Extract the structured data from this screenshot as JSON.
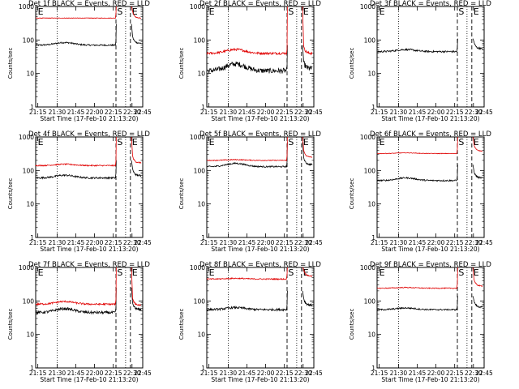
{
  "chart_data": [
    {
      "type": "line",
      "title": "Det 1f BLACK = Events, RED = LLD",
      "xlabel": "Start Time (17-Feb-10 21:13:20)",
      "ylabel": "Counts/sec",
      "yscale": "log",
      "ylim": [
        1,
        1000
      ],
      "x_ticks": [
        "21:15",
        "21:30",
        "21:45",
        "22:00",
        "22:15",
        "22:30",
        "22:45"
      ],
      "y_ticks": [
        "1",
        "10",
        "100",
        "1000"
      ],
      "markers": [
        "E",
        "S",
        "E"
      ],
      "series": [
        {
          "color": "#000000",
          "level_before": 70,
          "hump": 1.2,
          "spike": 300,
          "level_after": 80,
          "noise": 0.05
        },
        {
          "color": "#e00000",
          "level_before": 450,
          "hump": 1.0,
          "spike": 1000,
          "level_after": 450,
          "noise": 0.02
        }
      ]
    },
    {
      "type": "line",
      "title": "Det 2f BLACK = Events, RED = LLD",
      "xlabel": "Start Time (17-Feb-10 21:13:20)",
      "ylabel": "Counts/sec",
      "yscale": "log",
      "ylim": [
        1,
        1000
      ],
      "x_ticks": [
        "21:15",
        "21:30",
        "21:45",
        "22:00",
        "22:15",
        "22:30",
        "22:45"
      ],
      "y_ticks": [
        "1",
        "10",
        "100",
        "1000"
      ],
      "markers": [
        "E",
        "S",
        "E"
      ],
      "series": [
        {
          "color": "#000000",
          "level_before": 12,
          "hump": 1.6,
          "spike": 70,
          "level_after": 14,
          "noise": 0.18
        },
        {
          "color": "#e00000",
          "level_before": 40,
          "hump": 1.3,
          "spike": 1000,
          "level_after": 40,
          "noise": 0.08
        }
      ]
    },
    {
      "type": "line",
      "title": "Det 3f BLACK = Events, RED = LLD",
      "xlabel": "Start Time (17-Feb-10 21:13:20)",
      "ylabel": "Counts/sec",
      "yscale": "log",
      "ylim": [
        1,
        1000
      ],
      "x_ticks": [
        "21:15",
        "21:30",
        "21:45",
        "22:00",
        "22:15",
        "22:30",
        "22:45"
      ],
      "y_ticks": [
        "1",
        "10",
        "100",
        "1000"
      ],
      "markers": [
        "E",
        "S",
        "E"
      ],
      "series": [
        {
          "color": "#000000",
          "level_before": 45,
          "hump": 1.15,
          "spike": 110,
          "level_after": 55,
          "noise": 0.06
        }
      ]
    },
    {
      "type": "line",
      "title": "Det 4f BLACK = Events, RED = LLD",
      "xlabel": "Start Time (17-Feb-10 21:13:20)",
      "ylabel": "Counts/sec",
      "yscale": "log",
      "ylim": [
        1,
        1000
      ],
      "x_ticks": [
        "21:15",
        "21:30",
        "21:45",
        "22:00",
        "22:15",
        "22:30",
        "22:45"
      ],
      "y_ticks": [
        "1",
        "10",
        "100",
        "1000"
      ],
      "markers": [
        "E",
        "S",
        "E"
      ],
      "series": [
        {
          "color": "#000000",
          "level_before": 60,
          "hump": 1.2,
          "spike": 200,
          "level_after": 70,
          "noise": 0.06
        },
        {
          "color": "#e00000",
          "level_before": 140,
          "hump": 1.1,
          "spike": 1000,
          "level_after": 170,
          "noise": 0.04
        }
      ]
    },
    {
      "type": "line",
      "title": "Det 5f BLACK = Events, RED = LLD",
      "xlabel": "Start Time (17-Feb-10 21:13:20)",
      "ylabel": "Counts/sec",
      "yscale": "log",
      "ylim": [
        1,
        1000
      ],
      "x_ticks": [
        "21:15",
        "21:30",
        "21:45",
        "22:00",
        "22:15",
        "22:30",
        "22:45"
      ],
      "y_ticks": [
        "1",
        "10",
        "100",
        "1000"
      ],
      "markers": [
        "E",
        "S",
        "E"
      ],
      "series": [
        {
          "color": "#000000",
          "level_before": 130,
          "hump": 1.25,
          "spike": 700,
          "level_after": 150,
          "noise": 0.05
        },
        {
          "color": "#e00000",
          "level_before": 200,
          "hump": 1.05,
          "spike": 1000,
          "level_after": 250,
          "noise": 0.03
        }
      ]
    },
    {
      "type": "line",
      "title": "Det 6f BLACK = Events, RED = LLD",
      "xlabel": "Start Time (17-Feb-10 21:13:20)",
      "ylabel": "Counts/sec",
      "yscale": "log",
      "ylim": [
        1,
        1000
      ],
      "x_ticks": [
        "21:15",
        "21:30",
        "21:45",
        "22:00",
        "22:15",
        "22:30",
        "22:45"
      ],
      "y_ticks": [
        "1",
        "10",
        "100",
        "1000"
      ],
      "markers": [
        "E",
        "S",
        "E"
      ],
      "series": [
        {
          "color": "#000000",
          "level_before": 50,
          "hump": 1.2,
          "spike": 150,
          "level_after": 60,
          "noise": 0.05
        },
        {
          "color": "#e00000",
          "level_before": 320,
          "hump": 1.05,
          "spike": 1000,
          "level_after": 380,
          "noise": 0.02
        }
      ]
    },
    {
      "type": "line",
      "title": "Det 7f BLACK = Events, RED = LLD",
      "xlabel": "Start Time (17-Feb-10 21:13:20)",
      "ylabel": "Counts/sec",
      "yscale": "log",
      "ylim": [
        1,
        1000
      ],
      "x_ticks": [
        "21:15",
        "21:30",
        "21:45",
        "22:00",
        "22:15",
        "22:30",
        "22:45"
      ],
      "y_ticks": [
        "1",
        "10",
        "100",
        "1000"
      ],
      "markers": [
        "E",
        "S",
        "E"
      ],
      "series": [
        {
          "color": "#000000",
          "level_before": 45,
          "hump": 1.3,
          "spike": 250,
          "level_after": 55,
          "noise": 0.09
        },
        {
          "color": "#e00000",
          "level_before": 80,
          "hump": 1.2,
          "spike": 1000,
          "level_after": 75,
          "noise": 0.06
        }
      ]
    },
    {
      "type": "line",
      "title": "Det 8f BLACK = Events, RED = LLD",
      "xlabel": "Start Time (17-Feb-10 21:13:20)",
      "ylabel": "Counts/sec",
      "yscale": "log",
      "ylim": [
        1,
        1000
      ],
      "x_ticks": [
        "21:15",
        "21:30",
        "21:45",
        "22:00",
        "22:15",
        "22:30",
        "22:45"
      ],
      "y_ticks": [
        "1",
        "10",
        "100",
        "1000"
      ],
      "markers": [
        "E",
        "S",
        "E"
      ],
      "series": [
        {
          "color": "#000000",
          "level_before": 55,
          "hump": 1.15,
          "spike": 200,
          "level_after": 75,
          "noise": 0.07
        },
        {
          "color": "#e00000",
          "level_before": 450,
          "hump": 1.05,
          "spike": 1000,
          "level_after": 550,
          "noise": 0.04
        }
      ]
    },
    {
      "type": "line",
      "title": "Det 9f BLACK = Events, RED = LLD",
      "xlabel": "Start Time (17-Feb-10 21:13:20)",
      "ylabel": "Counts/sec",
      "yscale": "log",
      "ylim": [
        1,
        1000
      ],
      "x_ticks": [
        "21:15",
        "21:30",
        "21:45",
        "22:00",
        "22:15",
        "22:30",
        "22:45"
      ],
      "y_ticks": [
        "1",
        "10",
        "100",
        "1000"
      ],
      "markers": [
        "E",
        "S",
        "E"
      ],
      "series": [
        {
          "color": "#000000",
          "level_before": 55,
          "hump": 1.12,
          "spike": 140,
          "level_after": 65,
          "noise": 0.05
        },
        {
          "color": "#e00000",
          "level_before": 240,
          "hump": 1.05,
          "spike": 1000,
          "level_after": 280,
          "noise": 0.03
        }
      ]
    }
  ]
}
